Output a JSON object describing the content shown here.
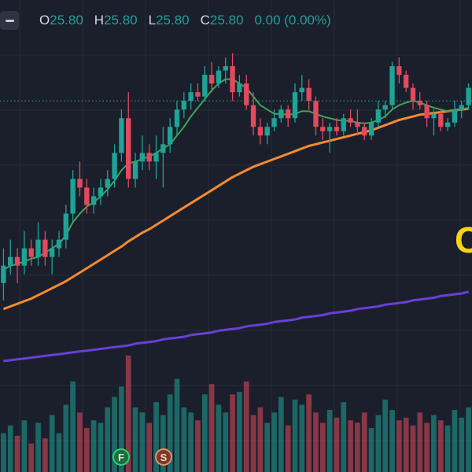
{
  "legend": {
    "open_label": "O",
    "open_value": "25.80",
    "high_label": "H",
    "high_value": "25.80",
    "low_label": "L",
    "low_value": "25.80",
    "close_label": "C",
    "close_value": "25.80",
    "change": "0.00 (0.00%)"
  },
  "events": {
    "f_label": "F",
    "s_label": "S"
  },
  "partial_label": "C",
  "icons": [
    "minus-icon"
  ],
  "colors": {
    "background": "#1b1f2b",
    "grid": "#262b38",
    "up": "#1ea497",
    "down": "#e24a5e",
    "ma_fast": "#3fa35a",
    "ma_mid": "#f58a2f",
    "ma_slow": "#6a3fd6",
    "price_line": "#2aa9a0",
    "annotation": "#f5d31a"
  },
  "chart_data": {
    "type": "candlestick",
    "candles": [
      {
        "o": 24.2,
        "h": 24.6,
        "l": 24.0,
        "c": 24.4
      },
      {
        "o": 24.4,
        "h": 24.7,
        "l": 24.3,
        "c": 24.5
      },
      {
        "o": 24.5,
        "h": 24.6,
        "l": 24.2,
        "c": 24.4
      },
      {
        "o": 24.4,
        "h": 24.8,
        "l": 24.3,
        "c": 24.6
      },
      {
        "o": 24.6,
        "h": 24.7,
        "l": 24.4,
        "c": 24.5
      },
      {
        "o": 24.5,
        "h": 24.9,
        "l": 24.4,
        "c": 24.7
      },
      {
        "o": 24.7,
        "h": 24.8,
        "l": 24.4,
        "c": 24.5
      },
      {
        "o": 24.5,
        "h": 24.7,
        "l": 24.3,
        "c": 24.6
      },
      {
        "o": 24.6,
        "h": 24.8,
        "l": 24.5,
        "c": 24.7
      },
      {
        "o": 24.7,
        "h": 25.1,
        "l": 24.6,
        "c": 25.0
      },
      {
        "o": 25.0,
        "h": 25.5,
        "l": 24.9,
        "c": 25.4
      },
      {
        "o": 25.4,
        "h": 25.6,
        "l": 25.2,
        "c": 25.3
      },
      {
        "o": 25.3,
        "h": 25.4,
        "l": 25.0,
        "c": 25.1
      },
      {
        "o": 25.1,
        "h": 25.3,
        "l": 25.0,
        "c": 25.2
      },
      {
        "o": 25.2,
        "h": 25.4,
        "l": 25.1,
        "c": 25.3
      },
      {
        "o": 25.3,
        "h": 25.5,
        "l": 25.2,
        "c": 25.4
      },
      {
        "o": 25.4,
        "h": 25.8,
        "l": 25.3,
        "c": 25.7
      },
      {
        "o": 25.7,
        "h": 26.2,
        "l": 25.6,
        "c": 26.1
      },
      {
        "o": 26.1,
        "h": 26.4,
        "l": 25.3,
        "c": 25.4
      },
      {
        "o": 25.4,
        "h": 25.7,
        "l": 25.3,
        "c": 25.6
      },
      {
        "o": 25.6,
        "h": 25.9,
        "l": 25.5,
        "c": 25.7
      },
      {
        "o": 25.7,
        "h": 25.8,
        "l": 25.5,
        "c": 25.6
      },
      {
        "o": 25.6,
        "h": 25.9,
        "l": 25.4,
        "c": 25.7
      },
      {
        "o": 25.7,
        "h": 26.0,
        "l": 25.3,
        "c": 25.8
      },
      {
        "o": 25.8,
        "h": 26.1,
        "l": 25.7,
        "c": 26.0
      },
      {
        "o": 26.0,
        "h": 26.3,
        "l": 25.9,
        "c": 26.2
      },
      {
        "o": 26.2,
        "h": 26.4,
        "l": 26.1,
        "c": 26.3
      },
      {
        "o": 26.3,
        "h": 26.5,
        "l": 26.2,
        "c": 26.4
      },
      {
        "o": 26.4,
        "h": 26.5,
        "l": 26.3,
        "c": 26.35
      },
      {
        "o": 26.35,
        "h": 26.7,
        "l": 26.3,
        "c": 26.6
      },
      {
        "o": 26.6,
        "h": 26.75,
        "l": 26.4,
        "c": 26.5
      },
      {
        "o": 26.5,
        "h": 26.7,
        "l": 26.45,
        "c": 26.65
      },
      {
        "o": 26.65,
        "h": 26.8,
        "l": 26.5,
        "c": 26.7
      },
      {
        "o": 26.7,
        "h": 26.85,
        "l": 26.3,
        "c": 26.4
      },
      {
        "o": 26.4,
        "h": 26.6,
        "l": 26.35,
        "c": 26.5
      },
      {
        "o": 26.5,
        "h": 26.6,
        "l": 26.2,
        "c": 26.25
      },
      {
        "o": 26.25,
        "h": 26.4,
        "l": 25.9,
        "c": 26.0
      },
      {
        "o": 26.0,
        "h": 26.1,
        "l": 25.8,
        "c": 25.9
      },
      {
        "o": 25.9,
        "h": 26.05,
        "l": 25.8,
        "c": 26.0
      },
      {
        "o": 26.0,
        "h": 26.2,
        "l": 25.95,
        "c": 26.1
      },
      {
        "o": 26.1,
        "h": 26.25,
        "l": 26.05,
        "c": 26.2
      },
      {
        "o": 26.2,
        "h": 26.25,
        "l": 26.0,
        "c": 26.1
      },
      {
        "o": 26.1,
        "h": 26.5,
        "l": 26.05,
        "c": 26.4
      },
      {
        "o": 26.4,
        "h": 26.6,
        "l": 26.3,
        "c": 26.45
      },
      {
        "o": 26.45,
        "h": 26.55,
        "l": 26.2,
        "c": 26.3
      },
      {
        "o": 26.3,
        "h": 26.35,
        "l": 25.9,
        "c": 26.0
      },
      {
        "o": 26.0,
        "h": 26.1,
        "l": 25.85,
        "c": 25.95
      },
      {
        "o": 25.95,
        "h": 26.05,
        "l": 25.7,
        "c": 26.0
      },
      {
        "o": 26.0,
        "h": 26.1,
        "l": 25.9,
        "c": 25.95
      },
      {
        "o": 25.95,
        "h": 26.15,
        "l": 25.9,
        "c": 26.1
      },
      {
        "o": 26.1,
        "h": 26.2,
        "l": 26.0,
        "c": 26.05
      },
      {
        "o": 26.05,
        "h": 26.2,
        "l": 25.9,
        "c": 26.0
      },
      {
        "o": 26.0,
        "h": 26.05,
        "l": 25.85,
        "c": 25.9
      },
      {
        "o": 25.9,
        "h": 26.1,
        "l": 25.85,
        "c": 26.05
      },
      {
        "o": 26.05,
        "h": 26.3,
        "l": 26.0,
        "c": 26.2
      },
      {
        "o": 26.2,
        "h": 26.3,
        "l": 26.1,
        "c": 26.25
      },
      {
        "o": 26.25,
        "h": 26.75,
        "l": 26.2,
        "c": 26.7
      },
      {
        "o": 26.7,
        "h": 26.8,
        "l": 26.5,
        "c": 26.6
      },
      {
        "o": 26.6,
        "h": 26.65,
        "l": 26.4,
        "c": 26.45
      },
      {
        "o": 26.45,
        "h": 26.5,
        "l": 26.2,
        "c": 26.3
      },
      {
        "o": 26.3,
        "h": 26.4,
        "l": 26.2,
        "c": 26.25
      },
      {
        "o": 26.25,
        "h": 26.3,
        "l": 26.0,
        "c": 26.1
      },
      {
        "o": 26.1,
        "h": 26.2,
        "l": 25.9,
        "c": 26.15
      },
      {
        "o": 26.15,
        "h": 26.2,
        "l": 25.95,
        "c": 26.0
      },
      {
        "o": 26.0,
        "h": 26.1,
        "l": 25.95,
        "c": 26.05
      },
      {
        "o": 26.05,
        "h": 26.3,
        "l": 26.0,
        "c": 26.2
      },
      {
        "o": 26.2,
        "h": 26.3,
        "l": 26.1,
        "c": 26.25
      },
      {
        "o": 26.25,
        "h": 26.5,
        "l": 26.2,
        "c": 26.45
      }
    ],
    "volumes": [
      30,
      36,
      28,
      40,
      22,
      38,
      26,
      44,
      30,
      52,
      70,
      46,
      34,
      40,
      38,
      50,
      58,
      66,
      90,
      50,
      46,
      38,
      54,
      44,
      60,
      72,
      50,
      46,
      40,
      60,
      68,
      52,
      46,
      60,
      62,
      70,
      44,
      50,
      38,
      46,
      58,
      36,
      56,
      52,
      60,
      46,
      38,
      48,
      42,
      54,
      40,
      38,
      46,
      34,
      44,
      56,
      48,
      40,
      42,
      36,
      46,
      38,
      44,
      40,
      36,
      48,
      42,
      50
    ],
    "ma_fast": [
      24.35,
      24.4,
      24.42,
      24.45,
      24.48,
      24.5,
      24.55,
      24.6,
      24.65,
      24.75,
      24.9,
      25.0,
      25.08,
      25.13,
      25.2,
      25.28,
      25.38,
      25.5,
      25.58,
      25.6,
      25.63,
      25.66,
      25.7,
      25.75,
      25.8,
      25.9,
      26.0,
      26.12,
      26.22,
      26.32,
      26.42,
      26.5,
      26.55,
      26.55,
      26.5,
      26.45,
      26.35,
      26.25,
      26.2,
      26.15,
      26.15,
      26.14,
      26.15,
      26.18,
      26.18,
      26.15,
      26.12,
      26.1,
      26.08,
      26.07,
      26.07,
      26.05,
      26.04,
      26.05,
      26.08,
      26.12,
      26.2,
      26.25,
      26.28,
      26.3,
      26.28,
      26.25,
      26.22,
      26.2,
      26.18,
      26.18,
      26.2,
      26.22
    ],
    "ma_mid": [
      23.9,
      23.93,
      23.96,
      23.99,
      24.02,
      24.06,
      24.1,
      24.14,
      24.18,
      24.22,
      24.27,
      24.32,
      24.37,
      24.42,
      24.47,
      24.52,
      24.57,
      24.62,
      24.68,
      24.73,
      24.78,
      24.82,
      24.87,
      24.92,
      24.97,
      25.02,
      25.07,
      25.12,
      25.17,
      25.22,
      25.27,
      25.32,
      25.37,
      25.42,
      25.46,
      25.5,
      25.54,
      25.57,
      25.6,
      25.63,
      25.66,
      25.69,
      25.72,
      25.75,
      25.78,
      25.8,
      25.82,
      25.84,
      25.86,
      25.88,
      25.9,
      25.92,
      25.94,
      25.96,
      25.99,
      26.02,
      26.05,
      26.08,
      26.1,
      26.12,
      26.14,
      26.15,
      26.16,
      26.17,
      26.18,
      26.19,
      26.2,
      26.21
    ],
    "ma_slow": [
      23.3,
      23.31,
      23.32,
      23.33,
      23.34,
      23.35,
      23.36,
      23.37,
      23.38,
      23.39,
      23.4,
      23.41,
      23.42,
      23.43,
      23.44,
      23.45,
      23.46,
      23.47,
      23.48,
      23.5,
      23.51,
      23.52,
      23.53,
      23.55,
      23.56,
      23.57,
      23.58,
      23.6,
      23.61,
      23.62,
      23.63,
      23.65,
      23.66,
      23.67,
      23.68,
      23.7,
      23.71,
      23.72,
      23.73,
      23.75,
      23.76,
      23.77,
      23.78,
      23.8,
      23.81,
      23.82,
      23.83,
      23.85,
      23.86,
      23.87,
      23.88,
      23.9,
      23.91,
      23.92,
      23.93,
      23.95,
      23.96,
      23.97,
      23.98,
      24.0,
      24.01,
      24.02,
      24.03,
      24.05,
      24.06,
      24.07,
      24.08,
      24.1
    ],
    "price_line": 26.3,
    "ylim": [
      23.2,
      27.1
    ],
    "grid": true
  }
}
